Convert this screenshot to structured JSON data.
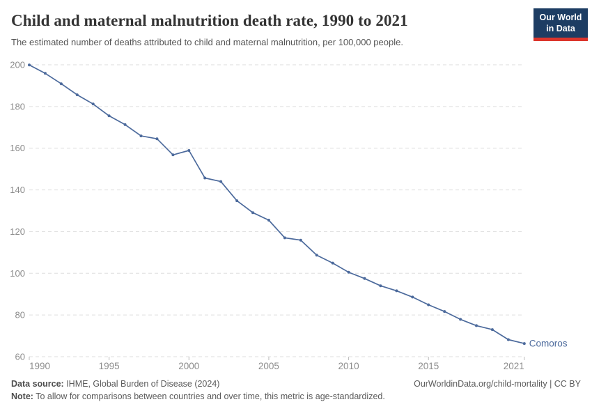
{
  "header": {
    "title": "Child and maternal malnutrition death rate, 1990 to 2021",
    "subtitle": "The estimated number of deaths attributed to child and maternal malnutrition, per 100,000 people.",
    "logo": {
      "line1": "Our World",
      "line2": "in Data"
    }
  },
  "chart_data": {
    "type": "line",
    "title": "Child and maternal malnutrition death rate, 1990 to 2021",
    "xlabel": "",
    "ylabel": "",
    "x": [
      1990,
      1991,
      1992,
      1993,
      1994,
      1995,
      1996,
      1997,
      1998,
      1999,
      2000,
      2001,
      2002,
      2003,
      2004,
      2005,
      2006,
      2007,
      2008,
      2009,
      2010,
      2011,
      2012,
      2013,
      2014,
      2015,
      2016,
      2017,
      2018,
      2019,
      2020,
      2021
    ],
    "series": [
      {
        "name": "Comoros",
        "values": [
          199.9,
          195.9,
          190.9,
          185.6,
          181.2,
          175.5,
          171.3,
          165.9,
          164.5,
          156.8,
          158.9,
          145.7,
          144.0,
          134.8,
          129.1,
          125.5,
          117.0,
          115.9,
          108.7,
          104.9,
          100.5,
          97.5,
          94.0,
          91.6,
          88.6,
          84.9,
          81.7,
          77.9,
          74.9,
          73.0,
          68.2,
          66.3
        ]
      }
    ],
    "ylim": [
      60,
      200
    ],
    "yticks": [
      60,
      80,
      100,
      120,
      140,
      160,
      180,
      200
    ],
    "xticks": [
      1990,
      1995,
      2000,
      2005,
      2010,
      2015,
      2021
    ],
    "grid": "horizontal-dashed",
    "legend_position": "end-of-line-label",
    "end_label": "Comoros"
  },
  "colors": {
    "line": "#4C6A9C",
    "grid": "#dddddd",
    "tick_text": "#8c8c8c",
    "axis_tick": "#bbbbbb",
    "logo_navy": "#1d3d63",
    "logo_red": "#dc352c"
  },
  "footer": {
    "data_source_label": "Data source:",
    "data_source_text": " IHME, Global Burden of Disease (2024)",
    "note_label": "Note:",
    "note_text": " To allow for comparisons between countries and over time, this metric is age-standardized.",
    "credit": "OurWorldinData.org/child-mortality | CC BY"
  }
}
